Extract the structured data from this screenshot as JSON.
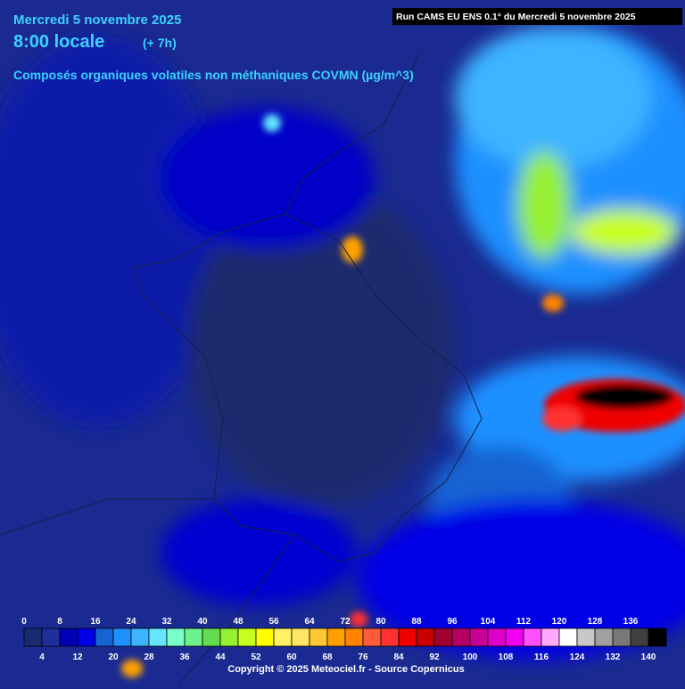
{
  "header": {
    "date": "Mercredi 5 novembre 2025",
    "time": "8:00 locale",
    "offset": "(+ 7h)",
    "variable": "Composés organiques volatiles non méthaniques COVMN (µg/m^3)",
    "run": "Run CAMS EU ENS 0.1° du Mercredi 5 novembre 2025"
  },
  "legend": {
    "ticks": [
      0,
      4,
      8,
      12,
      16,
      20,
      24,
      28,
      32,
      36,
      40,
      44,
      48,
      52,
      56,
      60,
      64,
      68,
      72,
      76,
      80,
      84,
      88,
      92,
      96,
      100,
      104,
      108,
      112,
      116,
      120,
      124,
      128,
      132,
      136,
      140
    ],
    "colors": [
      "#1a2a6e",
      "#1e2e9a",
      "#0000b4",
      "#0000e6",
      "#1464d2",
      "#1e90ff",
      "#3cb4ff",
      "#64e6ff",
      "#78ffc8",
      "#6ef08c",
      "#64dc50",
      "#96f032",
      "#c8ff1e",
      "#ffff00",
      "#fff064",
      "#ffe664",
      "#ffc832",
      "#ffa000",
      "#ff8200",
      "#ff5a3c",
      "#ff3232",
      "#f00000",
      "#c80000",
      "#a00032",
      "#b40064",
      "#c80096",
      "#dc00c8",
      "#f000f0",
      "#ff50ff",
      "#ffaaff",
      "#ffffff",
      "#c8c8c8",
      "#a0a0a0",
      "#787878",
      "#404040",
      "#000000"
    ]
  },
  "footer": {
    "copyright": "Copyright © 2025 Meteociel.fr - Source Copernicus"
  }
}
